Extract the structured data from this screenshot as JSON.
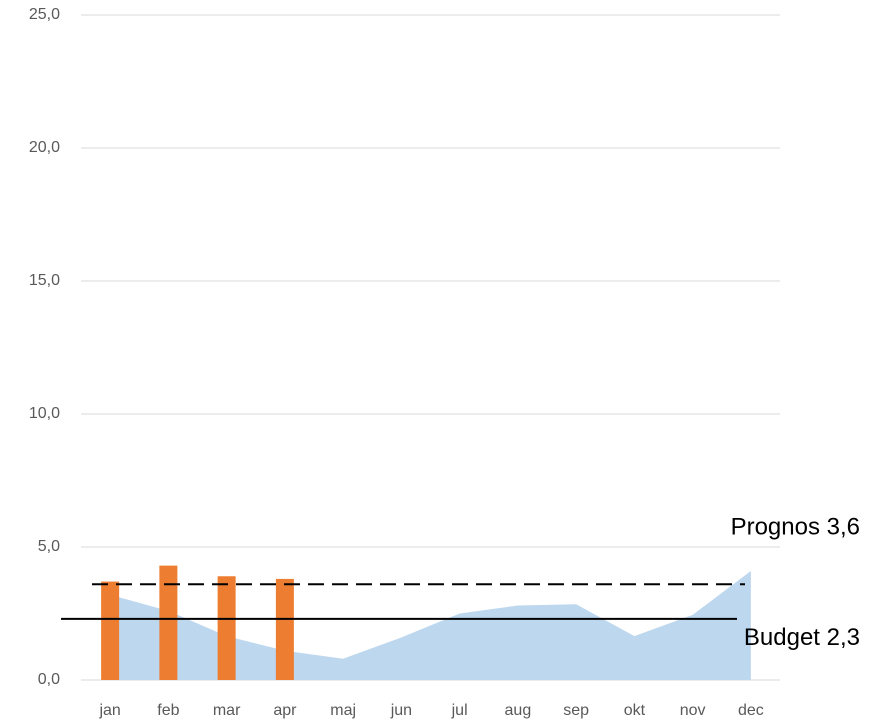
{
  "chart_data": {
    "type": "bar-area",
    "categories": [
      "jan",
      "feb",
      "mar",
      "apr",
      "maj",
      "jun",
      "jul",
      "aug",
      "sep",
      "okt",
      "nov",
      "dec"
    ],
    "bars": {
      "color": "#ed7d31",
      "values": [
        3.7,
        4.3,
        3.9,
        3.8,
        null,
        null,
        null,
        null,
        null,
        null,
        null,
        null
      ]
    },
    "area": {
      "color": "#bdd7ee",
      "values": [
        3.2,
        2.6,
        1.65,
        1.1,
        0.8,
        1.6,
        2.5,
        2.8,
        2.85,
        1.65,
        2.45,
        4.1
      ]
    },
    "reference_lines": [
      {
        "label": "Prognos 3,6",
        "value": 3.6,
        "style": "dashed"
      },
      {
        "label": "Budget 2,3",
        "value": 2.3,
        "style": "solid"
      }
    ],
    "ylim": [
      0,
      25
    ],
    "yticks": [
      {
        "value": 0,
        "label": "0,0"
      },
      {
        "value": 5,
        "label": "5,0"
      },
      {
        "value": 10,
        "label": "10,0"
      },
      {
        "value": 15,
        "label": "15,0"
      },
      {
        "value": 20,
        "label": "20,0"
      },
      {
        "value": 25,
        "label": "25,0"
      }
    ],
    "grid": true
  }
}
